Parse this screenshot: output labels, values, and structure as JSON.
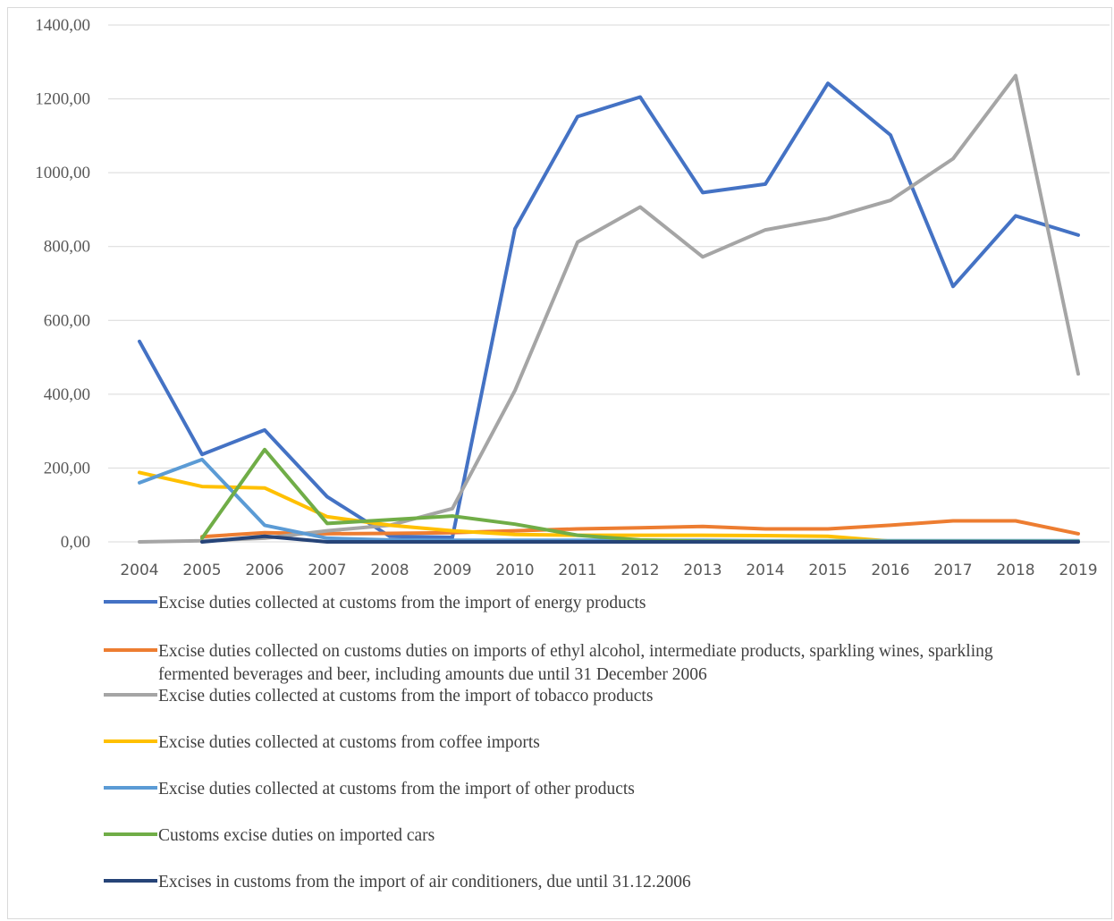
{
  "chart_data": {
    "type": "line",
    "title": "",
    "xlabel": "",
    "ylabel": "",
    "ylim": [
      0,
      1400
    ],
    "yticks": [
      "0,00",
      "200,00",
      "400,00",
      "600,00",
      "800,00",
      "1000,00",
      "1200,00",
      "1400,00"
    ],
    "x": [
      "2004",
      "2005",
      "2006",
      "2007",
      "2008",
      "2009",
      "2010",
      "2011",
      "2012",
      "2013",
      "2014",
      "2015",
      "2016",
      "2017",
      "2018",
      "2019"
    ],
    "grid": true,
    "legend_position": "bottom",
    "series": [
      {
        "name": "Excise duties collected at customs from the import of energy products",
        "color": "#4472C4",
        "values": [
          543,
          237,
          303,
          122,
          15,
          12,
          848,
          1152,
          1205,
          946,
          969,
          1242,
          1102,
          692,
          883,
          831
        ]
      },
      {
        "name": "Excise duties collected on customs duties on imports of ethyl alcohol, intermediate products, sparkling wines, sparkling fermented beverages and beer, including amounts due until 31 December 2006",
        "color": "#ED7D31",
        "values": [
          null,
          14,
          25,
          22,
          23,
          25,
          30,
          35,
          38,
          42,
          35,
          35,
          45,
          57,
          57,
          22
        ]
      },
      {
        "name": "Excise duties collected at customs from the import of tobacco products",
        "color": "#A5A5A5",
        "values": [
          0,
          3,
          10,
          30,
          45,
          90,
          410,
          812,
          907,
          772,
          845,
          876,
          925,
          1038,
          1263,
          455
        ]
      },
      {
        "name": "Excise duties collected at customs from coffee imports",
        "color": "#FFC000",
        "values": [
          188,
          150,
          146,
          68,
          45,
          30,
          20,
          18,
          18,
          18,
          17,
          15,
          2,
          1,
          1,
          1
        ]
      },
      {
        "name": "Excise duties collected at customs from the import of other products",
        "color": "#5B9BD5",
        "values": [
          160,
          223,
          45,
          10,
          5,
          4,
          4,
          4,
          4,
          4,
          3,
          3,
          3,
          3,
          3,
          3
        ]
      },
      {
        "name": "Customs excise duties on imported cars",
        "color": "#70AD47",
        "values": [
          null,
          10,
          250,
          50,
          60,
          70,
          48,
          18,
          5,
          2,
          1,
          1,
          1,
          1,
          1,
          1
        ]
      },
      {
        "name": "Excises in customs from the import of air conditioners, due until 31.12.2006",
        "color": "#264478",
        "values": [
          null,
          0,
          15,
          0,
          0,
          0,
          0,
          0,
          0,
          0,
          0,
          0,
          0,
          0,
          0,
          0
        ]
      }
    ]
  }
}
